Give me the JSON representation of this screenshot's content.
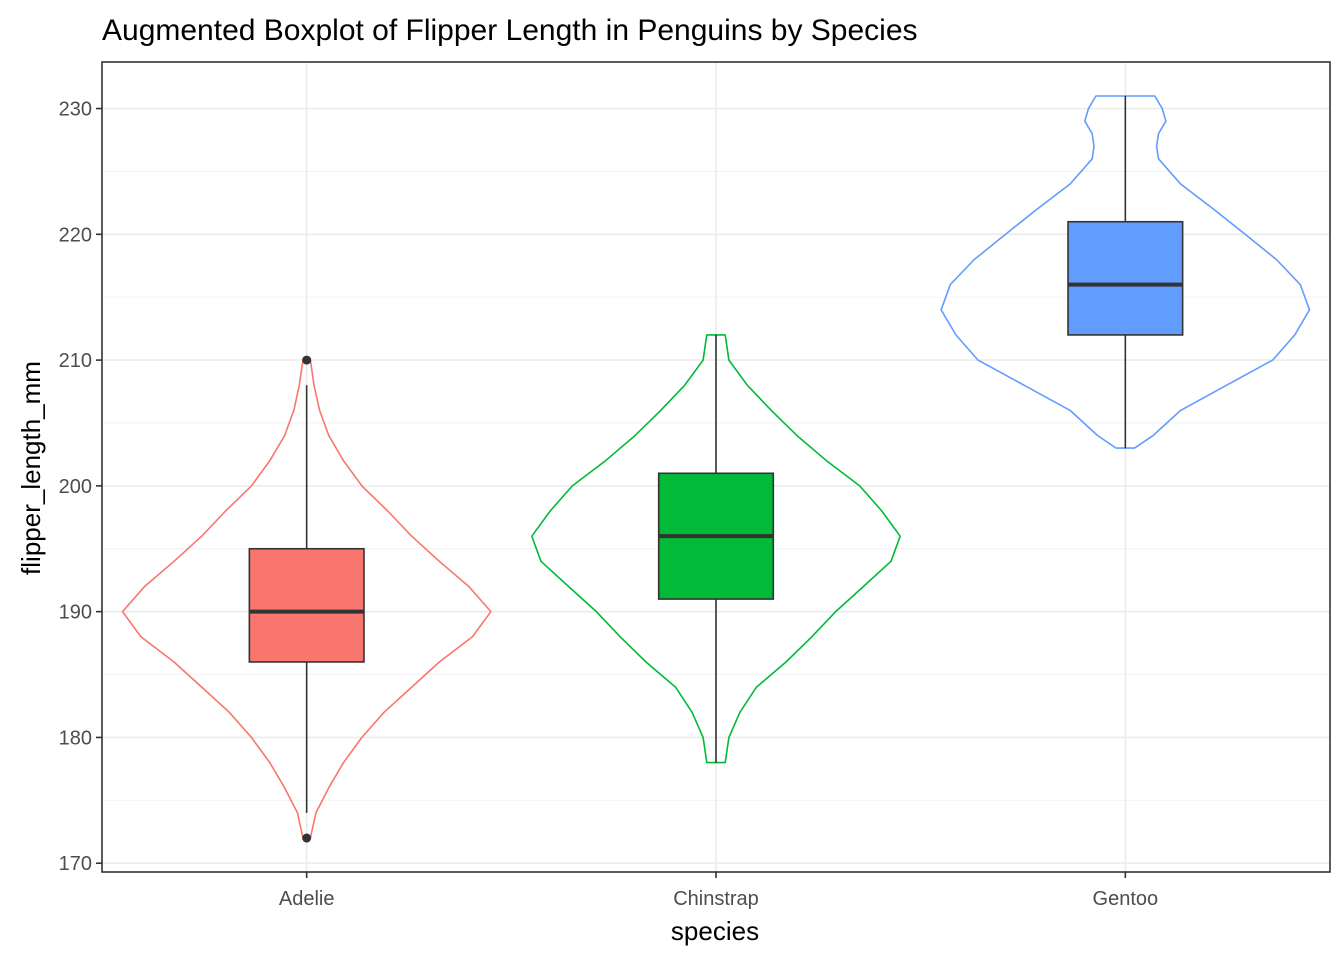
{
  "chart_data": {
    "type": "violin-boxplot",
    "title": "Augmented Boxplot of Flipper Length in Penguins by Species",
    "xlabel": "species",
    "ylabel": "flipper_length_mm",
    "ylim": [
      169.3,
      233.7
    ],
    "y_ticks": [
      170,
      180,
      190,
      200,
      210,
      220,
      230
    ],
    "grid": true,
    "legend": "none",
    "categories": [
      "Adelie",
      "Chinstrap",
      "Gentoo"
    ],
    "colors": {
      "Adelie": "#F8766D",
      "Chinstrap": "#00BA38",
      "Gentoo": "#619CFF"
    },
    "boxes": [
      {
        "name": "Adelie",
        "q1": 186,
        "median": 190,
        "q3": 195,
        "whisker_low": 174,
        "whisker_high": 208,
        "outliers": [
          172,
          210
        ]
      },
      {
        "name": "Chinstrap",
        "q1": 191,
        "median": 196,
        "q3": 201,
        "whisker_low": 178,
        "whisker_high": 212,
        "outliers": []
      },
      {
        "name": "Gentoo",
        "q1": 212,
        "median": 216,
        "q3": 221,
        "whisker_low": 203,
        "whisker_high": 231,
        "outliers": []
      }
    ],
    "violins": [
      {
        "name": "Adelie",
        "min": 172,
        "max": 210,
        "density": [
          [
            172,
            0.02
          ],
          [
            174,
            0.05
          ],
          [
            176,
            0.12
          ],
          [
            178,
            0.2
          ],
          [
            180,
            0.3
          ],
          [
            182,
            0.42
          ],
          [
            184,
            0.57
          ],
          [
            186,
            0.72
          ],
          [
            188,
            0.9
          ],
          [
            190,
            1.0
          ],
          [
            192,
            0.88
          ],
          [
            194,
            0.72
          ],
          [
            196,
            0.57
          ],
          [
            198,
            0.44
          ],
          [
            200,
            0.3
          ],
          [
            202,
            0.2
          ],
          [
            204,
            0.12
          ],
          [
            206,
            0.07
          ],
          [
            208,
            0.04
          ],
          [
            210,
            0.02
          ]
        ]
      },
      {
        "name": "Chinstrap",
        "min": 178,
        "max": 212,
        "density": [
          [
            178,
            0.05
          ],
          [
            180,
            0.07
          ],
          [
            182,
            0.13
          ],
          [
            184,
            0.22
          ],
          [
            186,
            0.38
          ],
          [
            188,
            0.52
          ],
          [
            190,
            0.65
          ],
          [
            192,
            0.8
          ],
          [
            194,
            0.95
          ],
          [
            196,
            1.0
          ],
          [
            198,
            0.9
          ],
          [
            200,
            0.78
          ],
          [
            202,
            0.6
          ],
          [
            204,
            0.44
          ],
          [
            206,
            0.3
          ],
          [
            208,
            0.17
          ],
          [
            210,
            0.07
          ],
          [
            212,
            0.05
          ]
        ]
      },
      {
        "name": "Gentoo",
        "min": 203,
        "max": 231,
        "density": [
          [
            203,
            0.05
          ],
          [
            204,
            0.15
          ],
          [
            206,
            0.3
          ],
          [
            208,
            0.55
          ],
          [
            210,
            0.8
          ],
          [
            212,
            0.92
          ],
          [
            214,
            1.0
          ],
          [
            216,
            0.95
          ],
          [
            218,
            0.82
          ],
          [
            220,
            0.65
          ],
          [
            222,
            0.48
          ],
          [
            224,
            0.3
          ],
          [
            226,
            0.18
          ],
          [
            227,
            0.17
          ],
          [
            228,
            0.18
          ],
          [
            229,
            0.22
          ],
          [
            230,
            0.2
          ],
          [
            231,
            0.16
          ]
        ]
      }
    ]
  }
}
